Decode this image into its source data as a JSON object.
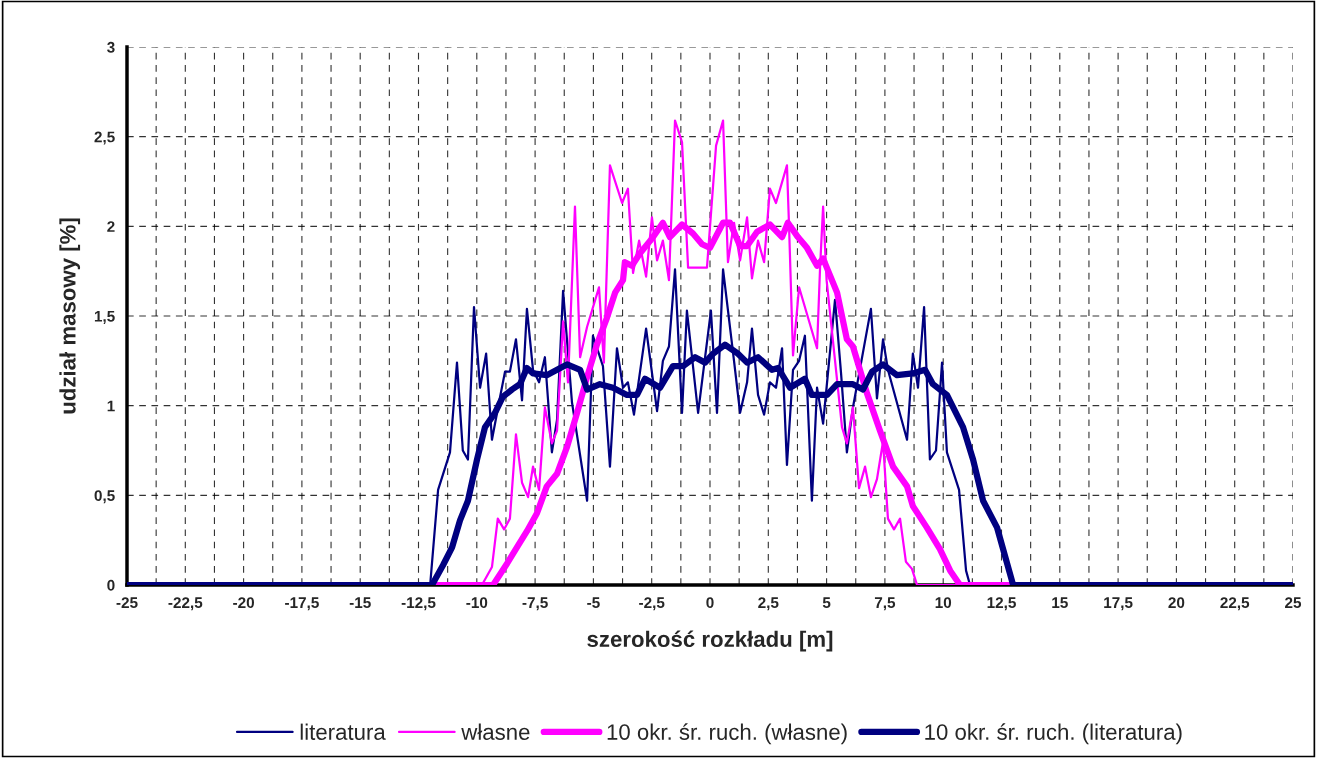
{
  "chart_data": {
    "type": "line",
    "xlabel": "szerokość rozkładu [m]",
    "ylabel": "udział masowy [%]",
    "xlim": [
      -25,
      25
    ],
    "ylim": [
      0,
      3
    ],
    "xticks": [
      -25,
      {
        "value": -23.75,
        "label": null
      },
      {
        "value": -22.5,
        "label": "-22,5"
      },
      {
        "value": -21.25,
        "label": null
      },
      -20,
      {
        "value": -18.75,
        "label": null
      },
      {
        "value": -17.5,
        "label": "-17,5"
      },
      {
        "value": -16.25,
        "label": null
      },
      -15,
      {
        "value": -13.75,
        "label": null
      },
      {
        "value": -12.5,
        "label": "-12,5"
      },
      {
        "value": -11.25,
        "label": null
      },
      -10,
      {
        "value": -8.75,
        "label": null
      },
      {
        "value": -7.5,
        "label": "-7,5"
      },
      {
        "value": -6.25,
        "label": null
      },
      -5,
      {
        "value": -3.75,
        "label": null
      },
      {
        "value": -2.5,
        "label": "-2,5"
      },
      {
        "value": -1.25,
        "label": null
      },
      0,
      {
        "value": 1.25,
        "label": null
      },
      {
        "value": 2.5,
        "label": "2,5"
      },
      {
        "value": 3.75,
        "label": null
      },
      5,
      {
        "value": 6.25,
        "label": null
      },
      {
        "value": 7.5,
        "label": "7,5"
      },
      {
        "value": 8.75,
        "label": null
      },
      10,
      {
        "value": 11.25,
        "label": null
      },
      {
        "value": 12.5,
        "label": "12,5"
      },
      {
        "value": 13.75,
        "label": null
      },
      15,
      {
        "value": 16.25,
        "label": null
      },
      {
        "value": 17.5,
        "label": "17,5"
      },
      {
        "value": 18.75,
        "label": null
      },
      20,
      {
        "value": 21.25,
        "label": null
      },
      {
        "value": 22.5,
        "label": "22,5"
      },
      {
        "value": 23.75,
        "label": null
      },
      25
    ],
    "yticks": [
      0,
      {
        "value": 0.5,
        "label": "0,5"
      },
      1,
      {
        "value": 1.5,
        "label": "1,5"
      },
      2,
      {
        "value": 2.5,
        "label": "2,5"
      },
      3
    ],
    "grid": true,
    "legend": "bottom",
    "series": [
      {
        "name": "literatura",
        "color": "#000080",
        "x": [
          -25,
          -12.0,
          -11.66,
          -11.15,
          -10.85,
          -10.6,
          -10.38,
          -10.12,
          -9.86,
          -9.6,
          -9.35,
          -9.0,
          -8.79,
          -8.58,
          -8.32,
          -8.06,
          -7.85,
          -7.59,
          -7.33,
          -7.08,
          -6.78,
          -6.56,
          -6.3,
          -5.92,
          -5.27,
          -5.02,
          -4.59,
          -4.29,
          -3.99,
          -3.73,
          -3.52,
          -3.26,
          -2.74,
          -2.27,
          -2.02,
          -1.76,
          -1.5,
          -1.2,
          -0.99,
          -0.51,
          0.04,
          0.3,
          0.56,
          1.03,
          1.29,
          1.59,
          1.8,
          2.06,
          2.32,
          2.57,
          2.83,
          3.09,
          3.3,
          3.56,
          3.82,
          4.07,
          4.37,
          4.59,
          4.85,
          5.36,
          5.62,
          5.87,
          6.13,
          6.9,
          7.16,
          7.42,
          7.63,
          8.45,
          8.7,
          8.92,
          9.18,
          9.43,
          9.69,
          9.95,
          10.16,
          10.68,
          10.98,
          11.15,
          25
        ],
        "values": [
          0,
          0,
          0.53,
          0.74,
          1.24,
          0.75,
          0.7,
          1.55,
          1.1,
          1.29,
          0.81,
          1.05,
          1.19,
          1.19,
          1.37,
          1.03,
          1.54,
          1.2,
          1.13,
          1.27,
          0.74,
          0.92,
          1.64,
          1.02,
          0.47,
          1.39,
          1.22,
          0.66,
          1.32,
          1.1,
          1.13,
          0.95,
          1.43,
          0.97,
          1.25,
          1.33,
          1.76,
          0.96,
          1.53,
          0.96,
          1.53,
          0.96,
          1.76,
          1.25,
          0.96,
          1.13,
          1.43,
          1.06,
          0.95,
          1.13,
          1.1,
          1.32,
          0.67,
          1.2,
          1.25,
          1.39,
          0.47,
          1.1,
          0.9,
          1.59,
          1.18,
          0.74,
          0.99,
          1.54,
          1.04,
          1.37,
          1.2,
          0.81,
          1.29,
          1.1,
          1.55,
          0.7,
          0.75,
          1.24,
          0.74,
          0.53,
          0.08,
          0,
          0
        ]
      },
      {
        "name": "własne",
        "color": "#ff00ff",
        "x": [
          -25,
          -9.78,
          -9.35,
          -9.1,
          -8.83,
          -8.58,
          -8.32,
          -8.06,
          -7.8,
          -7.59,
          -7.33,
          -7.08,
          -6.78,
          -6.56,
          -6.3,
          -6.09,
          -5.79,
          -5.57,
          -5.27,
          -4.76,
          -4.55,
          -4.29,
          -3.77,
          -3.52,
          -3.3,
          -3.04,
          -2.74,
          -2.49,
          -2.27,
          -2.02,
          -1.76,
          -1.5,
          -1.2,
          -0.94,
          -0.13,
          0.26,
          0.56,
          0.77,
          1.03,
          1.29,
          1.59,
          1.8,
          2.06,
          2.32,
          2.57,
          2.83,
          3.3,
          3.39,
          3.56,
          3.82,
          4.59,
          4.72,
          4.85,
          5.0,
          5.66,
          5.87,
          6.13,
          6.39,
          6.65,
          6.9,
          7.16,
          7.42,
          7.63,
          7.89,
          8.15,
          8.4,
          8.66,
          8.88,
          25
        ],
        "values": [
          0,
          0,
          0.1,
          0.37,
          0.31,
          0.37,
          0.84,
          0.57,
          0.49,
          0.66,
          0.53,
          0.99,
          0.79,
          0.86,
          1.47,
          1.13,
          2.11,
          1.27,
          1.44,
          1.66,
          1.24,
          2.34,
          2.13,
          2.21,
          1.74,
          1.92,
          1.72,
          2.05,
          1.81,
          1.92,
          1.7,
          2.59,
          2.47,
          1.77,
          1.77,
          2.45,
          2.59,
          1.8,
          2.02,
          1.81,
          2.05,
          1.71,
          1.92,
          1.8,
          2.21,
          2.13,
          2.34,
          2.0,
          1.28,
          1.66,
          1.32,
          1.77,
          2.11,
          1.7,
          0.88,
          0.79,
          0.99,
          0.54,
          0.66,
          0.49,
          0.59,
          0.8,
          0.37,
          0.31,
          0.37,
          0.13,
          0.09,
          0,
          0
        ]
      },
      {
        "name": "10 okr. śr. ruch. (własne)",
        "color": "#ff00ff",
        "x": [
          -25,
          -9.3,
          -8.7,
          -8.28,
          -7.85,
          -7.42,
          -7.0,
          -6.56,
          -6.13,
          -5.7,
          -5.27,
          -4.85,
          -4.42,
          -4.07,
          -3.73,
          -3.65,
          -3.35,
          -3.0,
          -2.44,
          -2.02,
          -1.72,
          -1.2,
          -0.73,
          -0.34,
          0,
          0.56,
          0.86,
          1.29,
          1.59,
          2.02,
          2.57,
          3.09,
          3.34,
          3.77,
          4.16,
          4.59,
          4.85,
          5.45,
          5.87,
          6.13,
          6.73,
          7.29,
          7.85,
          8.45,
          8.7,
          9.3,
          9.86,
          10.3,
          10.72,
          25
        ],
        "values": [
          0,
          0,
          0.12,
          0.21,
          0.3,
          0.4,
          0.55,
          0.62,
          0.77,
          0.96,
          1.16,
          1.34,
          1.49,
          1.63,
          1.7,
          1.8,
          1.78,
          1.85,
          1.94,
          2.02,
          1.94,
          2.01,
          1.96,
          1.9,
          1.88,
          2.02,
          2.02,
          1.89,
          1.89,
          1.97,
          2.01,
          1.94,
          2.02,
          1.94,
          1.88,
          1.78,
          1.82,
          1.63,
          1.37,
          1.33,
          1.07,
          0.86,
          0.66,
          0.55,
          0.44,
          0.32,
          0.2,
          0.08,
          0,
          0
        ]
      },
      {
        "name": "10 okr. śr. ruch. (literatura)",
        "color": "#000080",
        "x": [
          -25,
          -11.92,
          -11.45,
          -11.06,
          -10.72,
          -10.38,
          -9.99,
          -9.65,
          -9.22,
          -8.88,
          -8.49,
          -8.15,
          -7.85,
          -7.59,
          -7.0,
          -6.56,
          -6.13,
          -5.57,
          -5.27,
          -4.72,
          -4.16,
          -3.56,
          -3.13,
          -2.79,
          -2.14,
          -1.59,
          -1.16,
          -0.64,
          -0.21,
          0.13,
          0.64,
          1.2,
          1.59,
          2.06,
          2.66,
          2.92,
          3.43,
          4.07,
          4.37,
          5.02,
          5.45,
          6.13,
          6.56,
          6.95,
          7.42,
          8.02,
          8.7,
          9.22,
          9.56,
          10.16,
          10.85,
          11.28,
          11.71,
          12.31,
          13.0,
          25
        ],
        "values": [
          0,
          0,
          0.11,
          0.21,
          0.36,
          0.47,
          0.7,
          0.88,
          0.96,
          1.05,
          1.09,
          1.12,
          1.21,
          1.18,
          1.17,
          1.2,
          1.23,
          1.2,
          1.09,
          1.12,
          1.1,
          1.06,
          1.06,
          1.15,
          1.1,
          1.22,
          1.22,
          1.27,
          1.24,
          1.29,
          1.34,
          1.29,
          1.24,
          1.27,
          1.2,
          1.21,
          1.1,
          1.15,
          1.06,
          1.06,
          1.12,
          1.12,
          1.09,
          1.19,
          1.23,
          1.17,
          1.18,
          1.2,
          1.12,
          1.06,
          0.88,
          0.7,
          0.47,
          0.32,
          0,
          0
        ]
      }
    ]
  }
}
